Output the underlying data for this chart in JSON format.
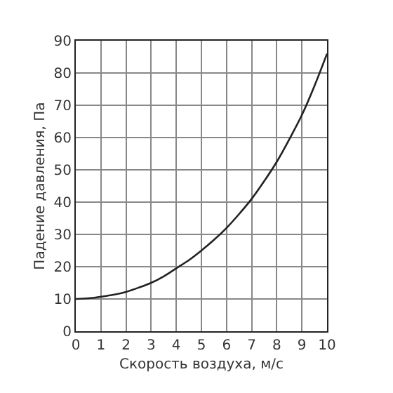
{
  "chart_data": {
    "type": "line",
    "xlabel": "Скорость воздуха, м/с",
    "ylabel": "Падение давления, Па",
    "x": [
      0,
      0.5,
      1,
      1.5,
      2,
      2.5,
      3,
      3.5,
      4,
      4.5,
      5,
      5.5,
      6,
      6.5,
      7,
      7.5,
      8,
      8.5,
      9,
      9.5,
      10
    ],
    "series": [
      {
        "color": "#222222",
        "values": [
          10,
          10.2,
          10.7,
          11.3,
          12.2,
          13.5,
          15,
          17,
          19.5,
          22,
          25,
          28.3,
          32,
          36.3,
          41,
          46.5,
          52.5,
          59.5,
          67,
          76,
          86
        ]
      }
    ],
    "xlim": [
      0,
      10
    ],
    "xticks": [
      0,
      1,
      2,
      3,
      4,
      5,
      6,
      7,
      8,
      9,
      10
    ],
    "ylim": [
      0,
      90
    ],
    "yticks": [
      0,
      10,
      20,
      30,
      40,
      50,
      60,
      70,
      80,
      90
    ],
    "grid": true,
    "marker": "none",
    "line_style": "solid",
    "legend": false
  }
}
